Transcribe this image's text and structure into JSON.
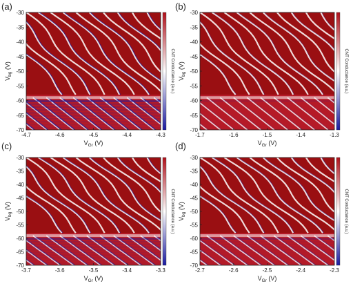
{
  "colors": {
    "low": "#1a1aa0",
    "mid": "#ffffff",
    "high": "#c8102e",
    "deep": "#9a0f12"
  },
  "chart_data": [
    {
      "type": "heatmap",
      "panel_label": "(a)",
      "xlabel_main": "V",
      "xlabel_sub": "Gr",
      "xlabel_unit": "(V)",
      "ylabel_main": "V",
      "ylabel_sub": "bg",
      "ylabel_unit": "(V)",
      "xlim": [
        -4.7,
        -4.3
      ],
      "ylim": [
        -70,
        -30
      ],
      "xticks": [
        "-4.7",
        "-4.6",
        "-4.5",
        "-4.4",
        "-4.3"
      ],
      "yticks": [
        "-30",
        "-35",
        "-40",
        "-45",
        "-50",
        "-55",
        "-60",
        "-65",
        "-70"
      ],
      "colorbar_label": "CNT Conductance (a.u.)",
      "blue_level": 0.75
    },
    {
      "type": "heatmap",
      "panel_label": "(b)",
      "xlabel_main": "V",
      "xlabel_sub": "Gr",
      "xlabel_unit": "(V)",
      "ylabel_main": "V",
      "ylabel_sub": "bg",
      "ylabel_unit": "(V)",
      "xlim": [
        -1.7,
        -1.3
      ],
      "ylim": [
        -70,
        -30
      ],
      "xticks": [
        "-1.7",
        "-1.6",
        "-1.5",
        "-1.4",
        "-1.3"
      ],
      "yticks": [
        "-30",
        "-35",
        "-40",
        "-45",
        "-50",
        "-55",
        "-60",
        "-65",
        "-70"
      ],
      "colorbar_label": "CNT Conductance (a.u.)",
      "blue_level": 0.15
    },
    {
      "type": "heatmap",
      "panel_label": "(c)",
      "xlabel_main": "V",
      "xlabel_sub": "Gr",
      "xlabel_unit": "(V)",
      "ylabel_main": "V",
      "ylabel_sub": "bg",
      "ylabel_unit": "(V)",
      "xlim": [
        -3.7,
        -3.3
      ],
      "ylim": [
        -70,
        -30
      ],
      "xticks": [
        "-3.7",
        "-3.6",
        "-3.5",
        "-3.4",
        "-3.3"
      ],
      "yticks": [
        "-30",
        "-35",
        "-40",
        "-45",
        "-50",
        "-55",
        "-60",
        "-65",
        "-70"
      ],
      "colorbar_label": "CNT Conductance (a.u.)",
      "blue_level": 0.55
    },
    {
      "type": "heatmap",
      "panel_label": "(d)",
      "xlabel_main": "V",
      "xlabel_sub": "Gr",
      "xlabel_unit": "(V)",
      "ylabel_main": "V",
      "ylabel_sub": "bg",
      "ylabel_unit": "(V)",
      "xlim": [
        -2.7,
        -2.3
      ],
      "ylim": [
        -70,
        -30
      ],
      "xticks": [
        "-2.7",
        "-2.6",
        "-2.5",
        "-2.4",
        "-2.3"
      ],
      "yticks": [
        "-30",
        "-35",
        "-40",
        "-45",
        "-50",
        "-55",
        "-60",
        "-65",
        "-70"
      ],
      "colorbar_label": "CNT Conductance (a.u.)",
      "blue_level": 0.35
    }
  ]
}
